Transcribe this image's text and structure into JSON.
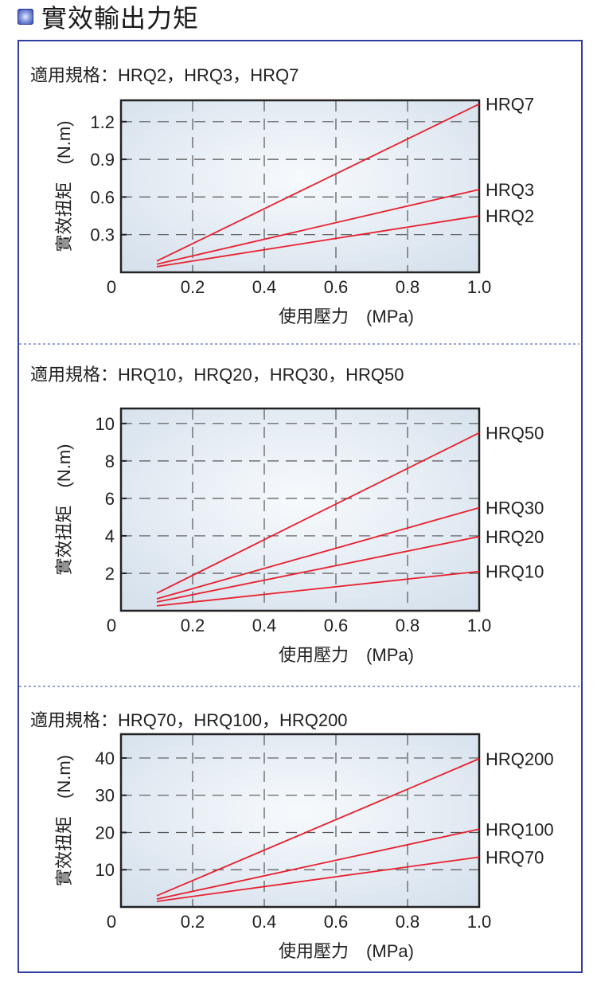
{
  "header": {
    "title": "實效輸出力矩",
    "icon": "square-bullet-icon"
  },
  "colors": {
    "frame": "#2f3f9f",
    "line": "#e8202e",
    "grid": "#555555",
    "separator": "#5a6ac0"
  },
  "chart_data": [
    {
      "type": "line",
      "title": "適用規格：HRQ2，HRQ3，HRQ7",
      "xlabel": "使用壓力　(MPa)",
      "ylabel": "實效扭矩　(N.m)",
      "xlim": [
        0,
        1.0
      ],
      "ylim": [
        0,
        1.37
      ],
      "xticks": [
        0.2,
        0.4,
        0.6,
        0.8,
        1.0
      ],
      "xtick_labels": [
        "0.2",
        "0.4",
        "0.6",
        "0.8",
        "1.0"
      ],
      "origin_label": "0",
      "yticks": [
        0.3,
        0.6,
        0.9,
        1.2
      ],
      "ytick_labels": [
        "0.3",
        "0.6",
        "0.9",
        "1.2"
      ],
      "grid": true,
      "series": [
        {
          "name": "HRQ7",
          "x": [
            0.1,
            1.0
          ],
          "y": [
            0.09,
            1.34
          ]
        },
        {
          "name": "HRQ3",
          "x": [
            0.1,
            1.0
          ],
          "y": [
            0.065,
            0.66
          ]
        },
        {
          "name": "HRQ2",
          "x": [
            0.1,
            1.0
          ],
          "y": [
            0.045,
            0.45
          ]
        }
      ]
    },
    {
      "type": "line",
      "title": "適用規格：HRQ10，HRQ20，HRQ30，HRQ50",
      "xlabel": "使用壓力　(MPa)",
      "ylabel": "實效扭矩　(N.m)",
      "xlim": [
        0,
        1.0
      ],
      "ylim": [
        0,
        10.8
      ],
      "xticks": [
        0.2,
        0.4,
        0.6,
        0.8,
        1.0
      ],
      "xtick_labels": [
        "0.2",
        "0.4",
        "0.6",
        "0.8",
        "1.0"
      ],
      "origin_label": "0",
      "yticks": [
        2,
        4,
        6,
        8,
        10
      ],
      "ytick_labels": [
        "2",
        "4",
        "6",
        "8",
        "10"
      ],
      "grid": true,
      "series": [
        {
          "name": "HRQ50",
          "x": [
            0.1,
            1.0
          ],
          "y": [
            0.94,
            9.5
          ]
        },
        {
          "name": "HRQ30",
          "x": [
            0.1,
            1.0
          ],
          "y": [
            0.64,
            5.5
          ]
        },
        {
          "name": "HRQ20",
          "x": [
            0.1,
            1.0
          ],
          "y": [
            0.47,
            3.96
          ]
        },
        {
          "name": "HRQ10",
          "x": [
            0.1,
            1.0
          ],
          "y": [
            0.26,
            2.1
          ]
        }
      ]
    },
    {
      "type": "line",
      "title": "適用規格：HRQ70，HRQ100，HRQ200",
      "xlabel": "使用壓力　(MPa)",
      "ylabel": "實效扭矩　(N.m)",
      "xlim": [
        0,
        1.0
      ],
      "ylim": [
        0,
        46.4
      ],
      "xticks": [
        0.2,
        0.4,
        0.6,
        0.8,
        1.0
      ],
      "xtick_labels": [
        "0.2",
        "0.4",
        "0.6",
        "0.8",
        "1.0"
      ],
      "origin_label": "0",
      "yticks": [
        10,
        20,
        30,
        40
      ],
      "ytick_labels": [
        "10",
        "20",
        "30",
        "40"
      ],
      "grid": true,
      "series": [
        {
          "name": "HRQ200",
          "x": [
            0.1,
            1.0
          ],
          "y": [
            3.0,
            39.8
          ]
        },
        {
          "name": "HRQ100",
          "x": [
            0.1,
            1.0
          ],
          "y": [
            2.1,
            20.9
          ]
        },
        {
          "name": "HRQ70",
          "x": [
            0.1,
            1.0
          ],
          "y": [
            1.5,
            13.4
          ]
        }
      ]
    }
  ]
}
